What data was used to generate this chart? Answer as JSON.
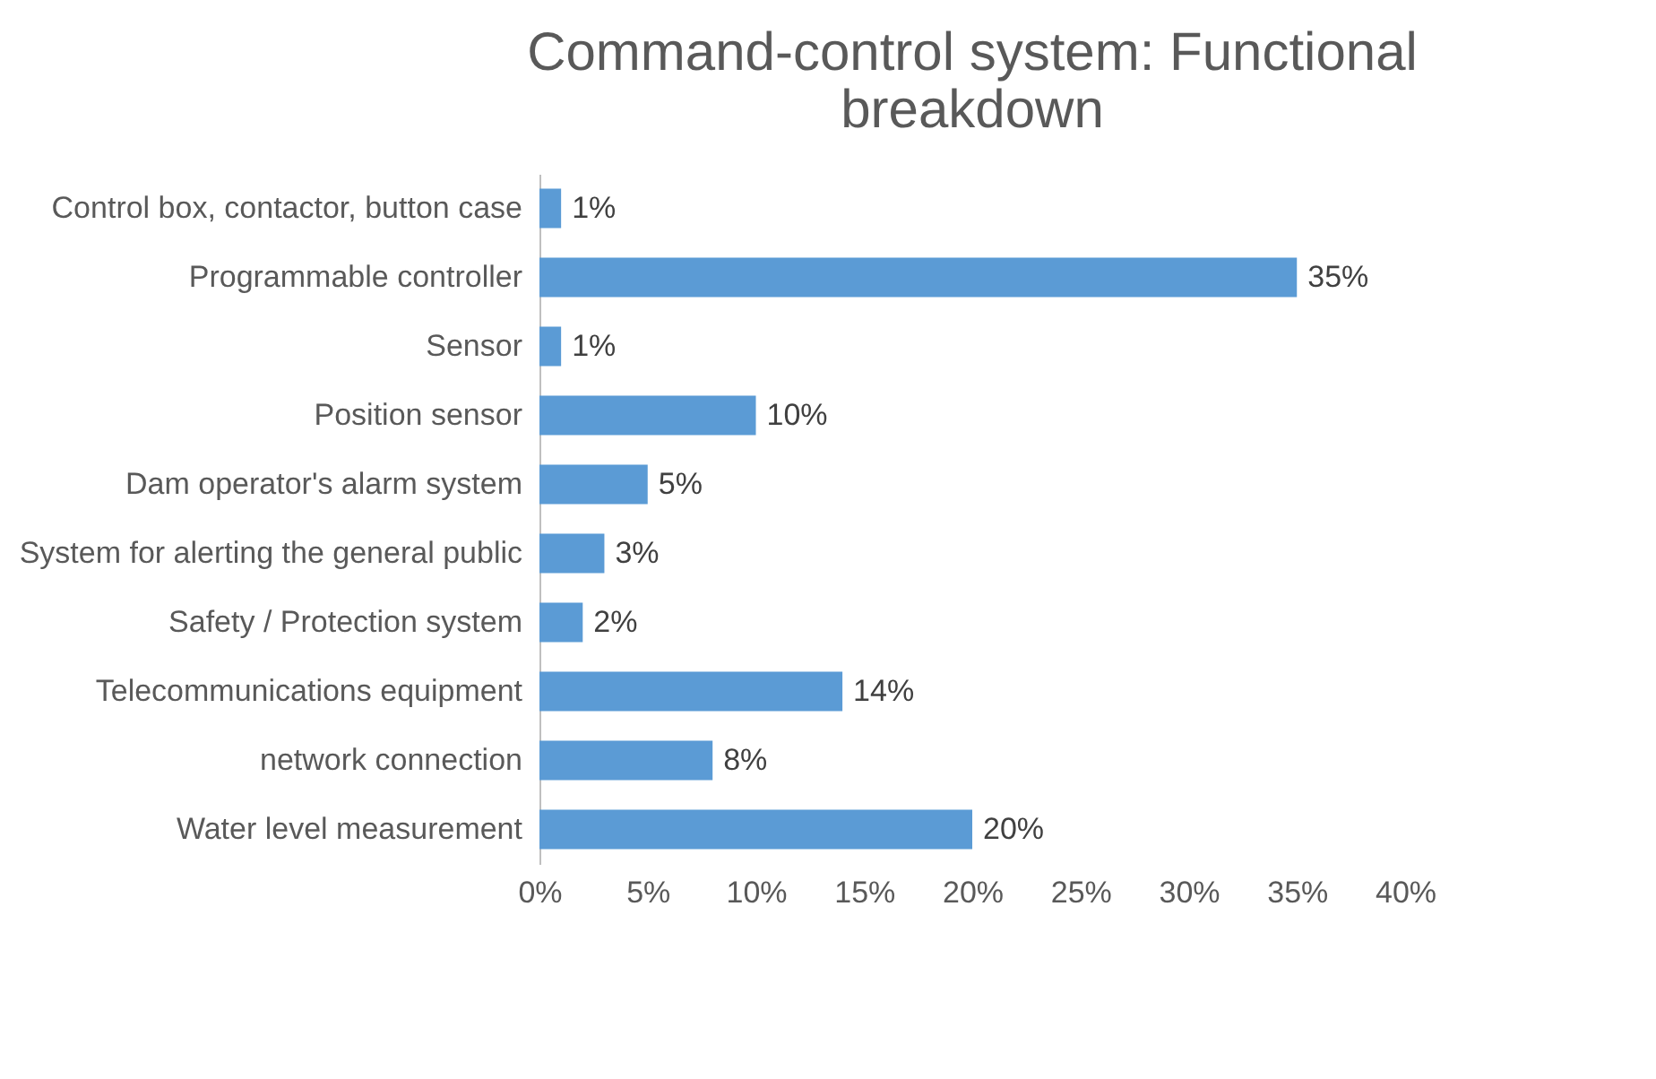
{
  "chart_data": {
    "type": "bar",
    "orientation": "horizontal",
    "title": "Command-control system: Functional breakdown",
    "categories": [
      "Control box, contactor, button case",
      "Programmable controller",
      "Sensor",
      "Position sensor",
      "Dam operator's alarm system",
      "System for alerting the general public",
      "Safety / Protection system",
      "Telecommunications equipment",
      "network connection",
      "Water level measurement"
    ],
    "values": [
      1,
      35,
      1,
      10,
      5,
      3,
      2,
      14,
      8,
      20
    ],
    "value_labels": [
      "1%",
      "35%",
      "1%",
      "10%",
      "5%",
      "3%",
      "2%",
      "14%",
      "8%",
      "20%"
    ],
    "color": "#5b9bd5",
    "xlim": [
      0,
      40
    ],
    "xticks": [
      {
        "value": 0,
        "label": "0%"
      },
      {
        "value": 5,
        "label": "5%"
      },
      {
        "value": 10,
        "label": "10%"
      },
      {
        "value": 15,
        "label": "15%"
      },
      {
        "value": 20,
        "label": "20%"
      },
      {
        "value": 25,
        "label": "25%"
      },
      {
        "value": 30,
        "label": "30%"
      },
      {
        "value": 35,
        "label": "35%"
      },
      {
        "value": 40,
        "label": "40%"
      }
    ],
    "grid": false
  }
}
